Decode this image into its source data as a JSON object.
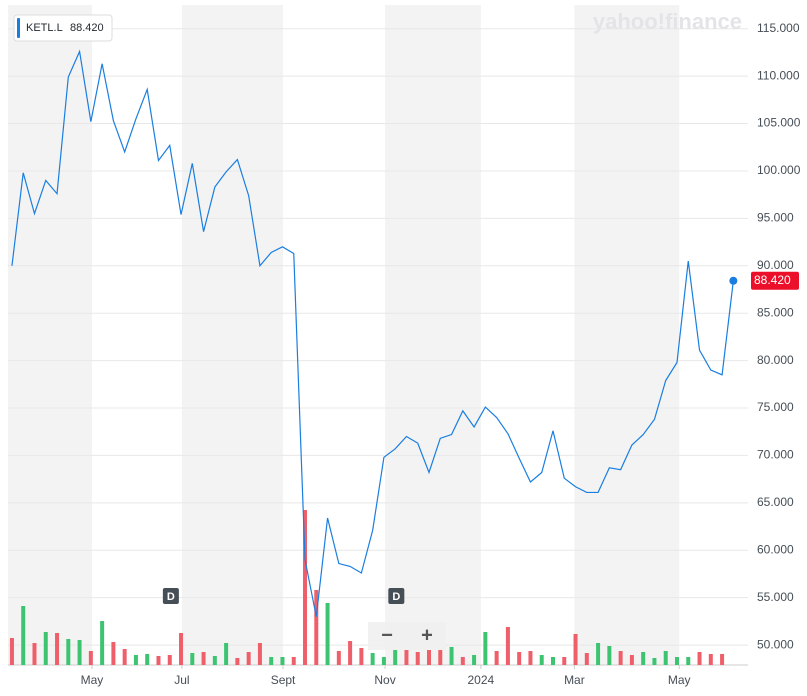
{
  "chart_data": {
    "type": "line",
    "symbol": "KETL.L",
    "price_label": "88.420",
    "watermark": "yahoo!finance",
    "series": [
      {
        "name": "KETL.L",
        "color": "#1a7ee0",
        "values": [
          90.0,
          99.8,
          95.5,
          99.0,
          97.6,
          109.9,
          112.6,
          105.2,
          111.3,
          105.3,
          102.0,
          105.5,
          108.6,
          101.1,
          102.7,
          95.4,
          100.8,
          93.6,
          98.3,
          99.9,
          101.2,
          97.4,
          90.0,
          91.4,
          92.0,
          91.3,
          59.0,
          53.0,
          63.4,
          58.6,
          58.3,
          57.6,
          62.1,
          69.8,
          70.7,
          72.0,
          71.3,
          68.2,
          71.8,
          72.2,
          74.7,
          73.0,
          75.1,
          74.0,
          72.3,
          69.7,
          67.2,
          68.2,
          72.6,
          67.6,
          66.7,
          66.1,
          66.1,
          68.7,
          68.5,
          71.1,
          72.2,
          73.8,
          77.9,
          79.8,
          90.5,
          81.1,
          79.0,
          78.5,
          88.42
        ]
      }
    ],
    "volume": {
      "values": [
        27,
        59,
        22,
        33,
        32,
        26,
        25,
        14,
        44,
        23,
        16,
        10,
        11,
        9,
        10,
        32,
        12,
        13,
        9,
        22,
        7,
        13,
        22,
        8,
        8,
        8,
        155,
        75,
        62,
        14,
        24,
        17,
        12,
        8,
        15,
        15,
        13,
        15,
        15,
        18,
        8,
        10,
        33,
        14,
        38,
        13,
        14,
        10,
        8,
        8,
        31,
        12,
        22,
        19,
        14,
        10,
        13,
        7,
        14,
        8,
        8,
        13,
        11,
        11,
        null
      ],
      "colors": [
        "#ef5f6a",
        "#3cc471",
        "#ef5f6a",
        "#3cc471",
        "#ef5f6a",
        "#3cc471",
        "#3cc471",
        "#ef5f6a",
        "#3cc471",
        "#ef5f6a",
        "#ef5f6a",
        "#3cc471",
        "#3cc471",
        "#ef5f6a",
        "#ef5f6a",
        "#ef5f6a",
        "#3cc471",
        "#ef5f6a",
        "#3cc471",
        "#3cc471",
        "#ef5f6a",
        "#ef5f6a",
        "#ef5f6a",
        "#3cc471",
        "#3cc471",
        "#ef5f6a",
        "#ef5f6a",
        "#ef5f6a",
        "#3cc471",
        "#ef5f6a",
        "#ef5f6a",
        "#ef5f6a",
        "#3cc471",
        "#3cc471",
        "#3cc471",
        "#ef5f6a",
        "#ef5f6a",
        "#ef5f6a",
        "#ef5f6a",
        "#3cc471",
        "#ef5f6a",
        "#3cc471",
        "#3cc471",
        "#ef5f6a",
        "#ef5f6a",
        "#ef5f6a",
        "#ef5f6a",
        "#3cc471",
        "#3cc471",
        "#ef5f6a",
        "#ef5f6a",
        "#ef5f6a",
        "#3cc471",
        "#3cc471",
        "#ef5f6a",
        "#ef5f6a",
        "#3cc471",
        "#3cc471",
        "#3cc471",
        "#3cc471",
        "#3cc471",
        "#ef5f6a",
        "#ef5f6a",
        "#ef5f6a",
        null
      ]
    },
    "xlim": [
      -0.35,
      65.3
    ],
    "xticks": [
      {
        "value": 7.1,
        "label": "May"
      },
      {
        "value": 15.08,
        "label": "Jul"
      },
      {
        "value": 24.05,
        "label": "Sept"
      },
      {
        "value": 33.1,
        "label": "Nov"
      },
      {
        "value": 41.6,
        "label": "2024"
      },
      {
        "value": 49.9,
        "label": "Mar"
      },
      {
        "value": 59.2,
        "label": "May"
      }
    ],
    "ylim": [
      47.9,
      117.5
    ],
    "yticks": [
      {
        "value": 50,
        "label": "50.000"
      },
      {
        "value": 55,
        "label": "55.000"
      },
      {
        "value": 60,
        "label": "60.000"
      },
      {
        "value": 65,
        "label": "65.000"
      },
      {
        "value": 70,
        "label": "70.000"
      },
      {
        "value": 75,
        "label": "75.000"
      },
      {
        "value": 80,
        "label": "80.000"
      },
      {
        "value": 85,
        "label": "85.000"
      },
      {
        "value": 90,
        "label": "90.000"
      },
      {
        "value": 95,
        "label": "95.000"
      },
      {
        "value": 100,
        "label": "100.000"
      },
      {
        "value": 105,
        "label": "105.000"
      },
      {
        "value": 110,
        "label": "110.000"
      },
      {
        "value": 115,
        "label": "115.000"
      }
    ],
    "grid": true,
    "band_color": "#f3f3f3",
    "markers": [
      {
        "label": "D",
        "x": 14.1
      },
      {
        "label": "D",
        "x": 34.1
      }
    ],
    "controls": [
      "−",
      "+"
    ]
  }
}
